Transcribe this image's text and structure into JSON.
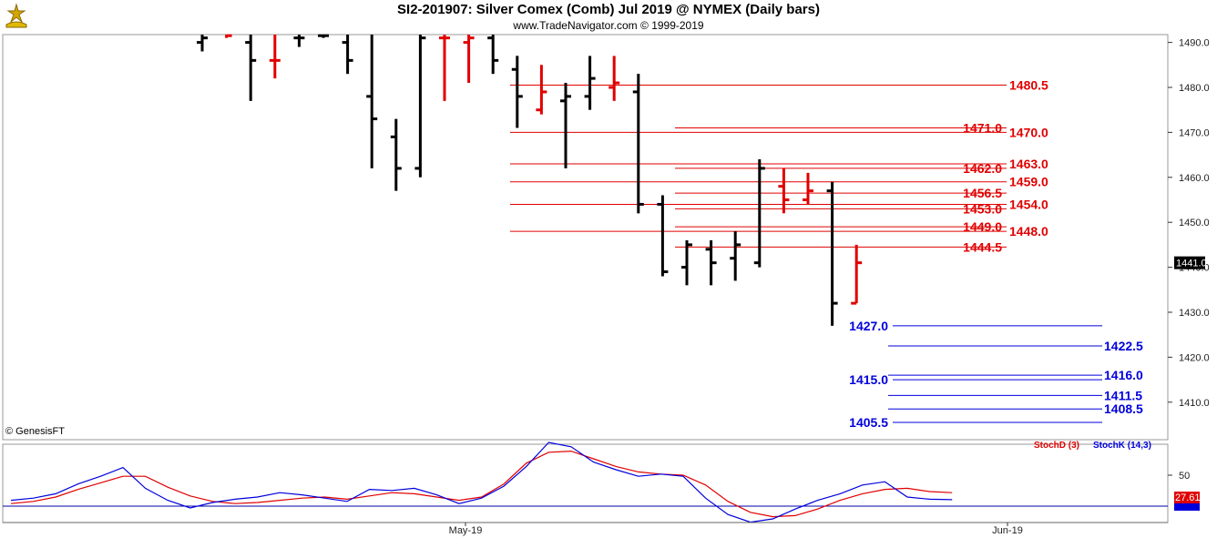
{
  "header": {
    "title": "SI2-201907:  Silver Comex (Comb) Jul 2019 @ NYMEX  (Daily bars)",
    "subtitle": "www.TradeNavigator.com © 1999-2019"
  },
  "footer": {
    "provider": "© GenesisFT"
  },
  "chart_data": [
    {
      "type": "ohlc",
      "title": "SI2-201907:  Silver Comex (Comb) Jul 2019 @ NYMEX  (Daily bars)",
      "y_ticks": [
        1410.0,
        1420.0,
        1430.0,
        1440.0,
        1450.0,
        1460.0,
        1470.0,
        1480.0,
        1490.0
      ],
      "ylim": [
        1402,
        1492
      ],
      "x_ticks": [
        "May-19",
        "Jun-19"
      ],
      "last_price": "1441.0",
      "bars": [
        {
          "high": 1492,
          "low": 1488,
          "open": 1490,
          "close": 1491,
          "color": "#000000"
        },
        {
          "high": 1492,
          "low": 1491,
          "open": 1492,
          "close": 1491.5,
          "color": "#e00000"
        },
        {
          "high": 1493,
          "low": 1477,
          "open": 1490,
          "close": 1486,
          "color": "#000000"
        },
        {
          "high": 1492,
          "low": 1482,
          "open": 1486,
          "close": 1486,
          "color": "#e00000"
        },
        {
          "high": 1492,
          "low": 1489,
          "open": 1491,
          "close": 1491,
          "color": "#000000"
        },
        {
          "high": 1492,
          "low": 1491,
          "open": 1491.5,
          "close": 1491.5,
          "color": "#000000"
        },
        {
          "high": 1492,
          "low": 1483,
          "open": 1490,
          "close": 1486,
          "color": "#000000"
        },
        {
          "high": 1493,
          "low": 1462,
          "open": 1478,
          "close": 1473,
          "color": "#000000"
        },
        {
          "high": 1473,
          "low": 1457,
          "open": 1469,
          "close": 1462,
          "color": "#000000"
        },
        {
          "high": 1493,
          "low": 1460,
          "open": 1462,
          "close": 1491,
          "color": "#000000"
        },
        {
          "high": 1492,
          "low": 1477,
          "open": 1491,
          "close": 1491,
          "color": "#e00000"
        },
        {
          "high": 1492,
          "low": 1481,
          "open": 1490,
          "close": 1491,
          "color": "#e00000"
        },
        {
          "high": 1492,
          "low": 1483,
          "open": 1491,
          "close": 1486,
          "color": "#000000"
        },
        {
          "high": 1487,
          "low": 1471,
          "open": 1484,
          "close": 1478,
          "color": "#000000"
        },
        {
          "high": 1485,
          "low": 1474,
          "open": 1475,
          "close": 1479,
          "color": "#e00000"
        },
        {
          "high": 1481,
          "low": 1462,
          "open": 1477,
          "close": 1478,
          "color": "#000000"
        },
        {
          "high": 1487,
          "low": 1475,
          "open": 1478,
          "close": 1482,
          "color": "#000000"
        },
        {
          "high": 1487,
          "low": 1477,
          "open": 1480,
          "close": 1481,
          "color": "#e00000"
        },
        {
          "high": 1483,
          "low": 1452,
          "open": 1479,
          "close": 1454,
          "color": "#000000"
        },
        {
          "high": 1456,
          "low": 1438,
          "open": 1454,
          "close": 1439,
          "color": "#000000"
        },
        {
          "high": 1446,
          "low": 1436,
          "open": 1440,
          "close": 1445,
          "color": "#000000"
        },
        {
          "high": 1446,
          "low": 1436,
          "open": 1444,
          "close": 1441,
          "color": "#000000"
        },
        {
          "high": 1448,
          "low": 1437,
          "open": 1442,
          "close": 1445,
          "color": "#000000"
        },
        {
          "high": 1464,
          "low": 1440,
          "open": 1441,
          "close": 1462,
          "color": "#000000"
        },
        {
          "high": 1462,
          "low": 1452,
          "open": 1458,
          "close": 1455,
          "color": "#e00000"
        },
        {
          "high": 1461,
          "low": 1454,
          "open": 1455,
          "close": 1457,
          "color": "#e00000"
        },
        {
          "high": 1459,
          "low": 1427,
          "open": 1457,
          "close": 1432,
          "color": "#000000"
        },
        {
          "high": 1445,
          "low": 1432,
          "open": 1432,
          "close": 1441,
          "color": "#e00000"
        }
      ],
      "levels": [
        {
          "value": 1480.5,
          "label": "1480.5",
          "color": "#e00000",
          "label_side": "right",
          "x_from": 560
        },
        {
          "value": 1471.0,
          "label": "1471.0",
          "color": "#e00000",
          "label_side": "left",
          "x_from": 741
        },
        {
          "value": 1470.0,
          "label": "1470.0",
          "color": "#e00000",
          "label_side": "right",
          "x_from": 560
        },
        {
          "value": 1463.0,
          "label": "1463.0",
          "color": "#e00000",
          "label_side": "right",
          "x_from": 560
        },
        {
          "value": 1462.0,
          "label": "1462.0",
          "color": "#e00000",
          "label_side": "left",
          "x_from": 741
        },
        {
          "value": 1459.0,
          "label": "1459.0",
          "color": "#e00000",
          "label_side": "right",
          "x_from": 560
        },
        {
          "value": 1456.5,
          "label": "1456.5",
          "color": "#e00000",
          "label_side": "left",
          "x_from": 741
        },
        {
          "value": 1454.0,
          "label": "1454.0",
          "color": "#e00000",
          "label_side": "right",
          "x_from": 560
        },
        {
          "value": 1453.0,
          "label": "1453.0",
          "color": "#e00000",
          "label_side": "left",
          "x_from": 741
        },
        {
          "value": 1449.0,
          "label": "1449.0",
          "color": "#e00000",
          "label_side": "left",
          "x_from": 741
        },
        {
          "value": 1448.0,
          "label": "1448.0",
          "color": "#e00000",
          "label_side": "right",
          "x_from": 560
        },
        {
          "value": 1444.5,
          "label": "1444.5",
          "color": "#e00000",
          "label_side": "left",
          "x_from": 741
        },
        {
          "value": 1427.0,
          "label": "1427.0",
          "color": "#0000dd",
          "label_side": "left-blue",
          "x_from": 980
        },
        {
          "value": 1422.5,
          "label": "1422.5",
          "color": "#0000dd",
          "label_side": "right-blue",
          "x_from": 975
        },
        {
          "value": 1416.0,
          "label": "1416.0",
          "color": "#0000dd",
          "label_side": "right-blue",
          "x_from": 975
        },
        {
          "value": 1415.0,
          "label": "1415.0",
          "color": "#0000dd",
          "label_side": "left-blue",
          "x_from": 980
        },
        {
          "value": 1411.5,
          "label": "1411.5",
          "color": "#0000dd",
          "label_side": "right-blue",
          "x_from": 975
        },
        {
          "value": 1408.5,
          "label": "1408.5",
          "color": "#0000dd",
          "label_side": "right-blue",
          "x_from": 975
        },
        {
          "value": 1405.5,
          "label": "1405.5",
          "color": "#0000dd",
          "label_side": "left-blue",
          "x_from": 980
        }
      ]
    },
    {
      "type": "line",
      "legend": [
        "StochD (3)",
        "StochK (14,3)"
      ],
      "y_ticks": [
        50
      ],
      "ylim": [
        0,
        100
      ],
      "last_value": "27.61",
      "series": [
        {
          "name": "StochD (3)",
          "color": "#e00000",
          "values": [
            24,
            26,
            30,
            37,
            43,
            49,
            49,
            39,
            31,
            26,
            24,
            25,
            27,
            29,
            30,
            28,
            31,
            34,
            33,
            30,
            27,
            30,
            42,
            61,
            71,
            72,
            65,
            58,
            53,
            51,
            50,
            41,
            26,
            16,
            12,
            13,
            19,
            27,
            33,
            37,
            38,
            35,
            34
          ]
        },
        {
          "name": "StochK (14,3)",
          "color": "#0000dd",
          "values": [
            27,
            29,
            33,
            42,
            49,
            57,
            38,
            27,
            20,
            25,
            28,
            30,
            34,
            32,
            29,
            26,
            37,
            36,
            38,
            32,
            24,
            29,
            40,
            58,
            80,
            76,
            62,
            55,
            49,
            51,
            49,
            29,
            14,
            7,
            10,
            19,
            27,
            33,
            41,
            44,
            30,
            28,
            27.61
          ]
        }
      ]
    }
  ]
}
